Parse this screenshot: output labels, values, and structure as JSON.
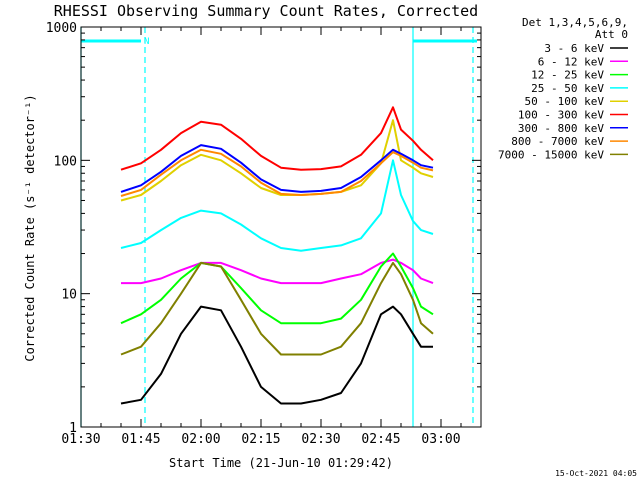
{
  "chart_data": {
    "type": "line",
    "title": "RHESSI Observing Summary Count Rates, Corrected",
    "xlabel": "Start Time (21-Jun-10 01:29:42)",
    "ylabel": "Corrected Count Rate (s⁻¹ detector⁻¹)",
    "footer": "15-Oct-2021 04:05",
    "legend_header": [
      "Det 1,3,4,5,6,9,",
      "Att 0"
    ],
    "legend_position": "right",
    "y_scale": "log",
    "ylim": [
      1,
      1000
    ],
    "xlim": [
      "01:30",
      "03:10"
    ],
    "x_ticks": [
      "01:30",
      "01:45",
      "02:00",
      "02:15",
      "02:30",
      "02:45",
      "03:00"
    ],
    "y_ticks": [
      "1",
      "10",
      "100",
      "1000"
    ],
    "flag_label": "N",
    "x": [
      "01:40",
      "01:45",
      "01:50",
      "01:55",
      "02:00",
      "02:05",
      "02:10",
      "02:15",
      "02:20",
      "02:25",
      "02:30",
      "02:35",
      "02:40",
      "02:45",
      "02:48",
      "02:50",
      "02:53",
      "02:55",
      "02:58"
    ],
    "series": [
      {
        "name": "3 - 6 keV",
        "color": "#000000",
        "values": [
          1.5,
          1.6,
          2.5,
          5,
          8,
          7.5,
          4,
          2,
          1.5,
          1.5,
          1.6,
          1.8,
          3,
          7,
          8,
          7,
          5,
          4,
          4
        ]
      },
      {
        "name": "6 - 12 keV",
        "color": "#ff00ff",
        "values": [
          12,
          12,
          13,
          15,
          17,
          17,
          15,
          13,
          12,
          12,
          12,
          13,
          14,
          17,
          18,
          17,
          15,
          13,
          12
        ]
      },
      {
        "name": "12 - 25 keV",
        "color": "#00ff00",
        "values": [
          6,
          7,
          9,
          13,
          17,
          16,
          11,
          7.5,
          6,
          6,
          6,
          6.5,
          9,
          16,
          20,
          16,
          11,
          8,
          7
        ]
      },
      {
        "name": "25 - 50 keV",
        "color": "#00ffff",
        "values": [
          22,
          24,
          30,
          37,
          42,
          40,
          33,
          26,
          22,
          21,
          22,
          23,
          26,
          40,
          100,
          55,
          35,
          30,
          28
        ]
      },
      {
        "name": "50 - 100 keV",
        "color": "#e0d000",
        "values": [
          50,
          55,
          70,
          92,
          110,
          100,
          80,
          62,
          55,
          55,
          56,
          58,
          65,
          95,
          200,
          100,
          88,
          80,
          75
        ]
      },
      {
        "name": "100 - 300 keV",
        "color": "#ff0000",
        "values": [
          85,
          95,
          120,
          160,
          195,
          185,
          145,
          108,
          88,
          85,
          86,
          90,
          110,
          160,
          250,
          170,
          140,
          120,
          100
        ]
      },
      {
        "name": "300 - 800 keV",
        "color": "#0000ff",
        "values": [
          58,
          65,
          82,
          108,
          130,
          122,
          96,
          72,
          60,
          58,
          59,
          62,
          75,
          100,
          120,
          112,
          100,
          92,
          88
        ]
      },
      {
        "name": "800 - 7000 keV",
        "color": "#ff8800",
        "values": [
          54,
          60,
          78,
          100,
          120,
          112,
          90,
          68,
          56,
          55,
          56,
          58,
          70,
          95,
          115,
          108,
          96,
          88,
          84
        ]
      },
      {
        "name": "7000 - 15000 keV",
        "color": "#808000",
        "values": [
          3.5,
          4,
          6,
          10,
          17,
          16,
          9,
          5,
          3.5,
          3.5,
          3.5,
          4,
          6,
          12,
          17,
          14,
          9,
          6,
          5
        ]
      }
    ],
    "vertical_markers": [
      {
        "time": "01:30",
        "color": "#00ffff",
        "style": "solid"
      },
      {
        "time": "01:46",
        "color": "#00ffff",
        "style": "dashed"
      },
      {
        "time": "02:53",
        "color": "#00ffff",
        "style": "solid"
      },
      {
        "time": "03:08",
        "color": "#00ffff",
        "style": "dashed"
      }
    ],
    "segments": [
      {
        "start": "01:30",
        "end": "01:45",
        "color": "#00ffff"
      },
      {
        "start": "02:53",
        "end": "03:09",
        "color": "#00ffff"
      }
    ]
  }
}
